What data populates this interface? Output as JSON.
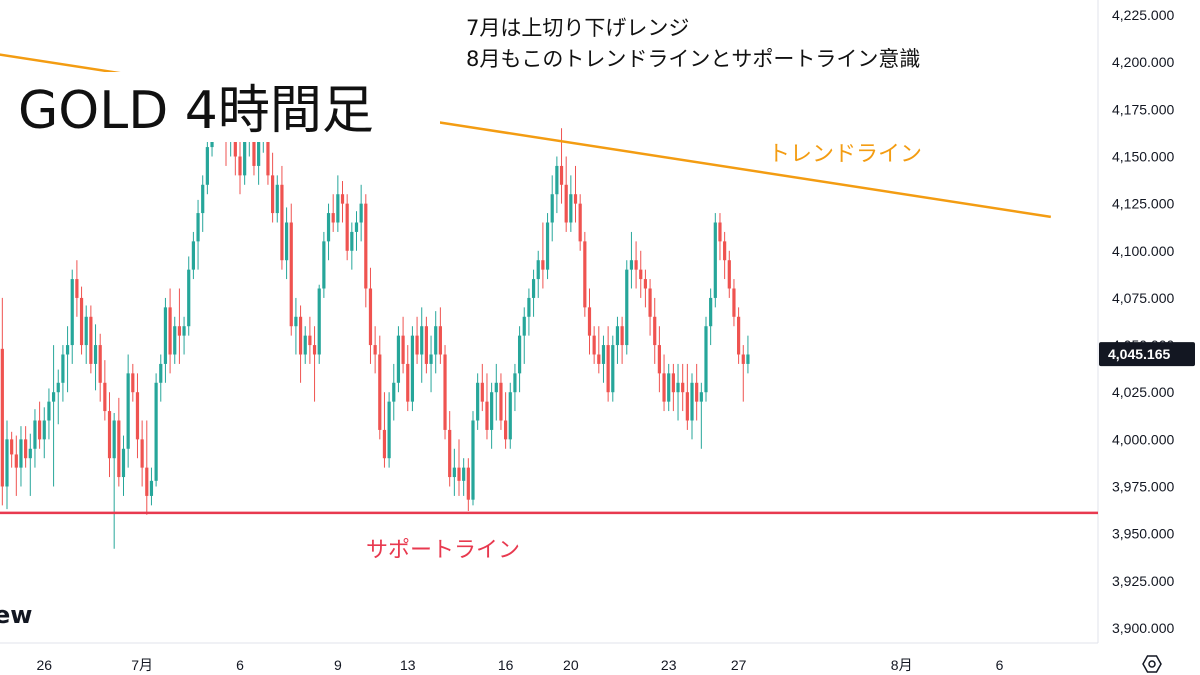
{
  "chart_data": {
    "type": "candlestick",
    "title": "GOLD 4時間足",
    "notes": [
      "7月は上切り下げレンジ",
      "8月もこのトレンドラインとサポートライン意識"
    ],
    "y_ticks": [
      "4,225.000",
      "4,200.000",
      "4,175.000",
      "4,150.000",
      "4,125.000",
      "4,100.000",
      "4,075.000",
      "4,050.000",
      "4,025.000",
      "4,000.000",
      "3,975.000",
      "3,950.000",
      "3,925.000",
      "3,900.000"
    ],
    "y_tick_values": [
      4225,
      4200,
      4175,
      4150,
      4125,
      4100,
      4075,
      4050,
      4025,
      4000,
      3975,
      3950,
      3925,
      3900
    ],
    "ylim": [
      3892,
      4233
    ],
    "x_ticks": [
      {
        "label": "26",
        "index": 9
      },
      {
        "label": "7月",
        "index": 30
      },
      {
        "label": "6",
        "index": 51
      },
      {
        "label": "9",
        "index": 72
      },
      {
        "label": "13",
        "index": 87
      },
      {
        "label": "16",
        "index": 108
      },
      {
        "label": "20",
        "index": 122
      },
      {
        "label": "23",
        "index": 143
      },
      {
        "label": "27",
        "index": 158
      },
      {
        "label": "8月",
        "index": 193
      },
      {
        "label": "6",
        "index": 214
      }
    ],
    "last_price": 4045.165,
    "last_price_label": "4,045.165",
    "trendline": {
      "label": "トレンドライン",
      "start": {
        "index": -3,
        "value": 4205
      },
      "end": {
        "index": 225,
        "value": 4118
      },
      "color": "#f39c12"
    },
    "support_line": {
      "label": "サポートライン",
      "value": 3961,
      "color": "#e8394f"
    },
    "up_color": "#26a69a",
    "down_color": "#ef5350",
    "candles": [
      [
        4048,
        4075,
        3965,
        3975
      ],
      [
        3975,
        4010,
        3963,
        4000
      ],
      [
        4000,
        4004,
        3985,
        3992
      ],
      [
        3992,
        4002,
        3970,
        3985
      ],
      [
        3985,
        4007,
        3975,
        4000
      ],
      [
        4000,
        4007,
        3985,
        3990
      ],
      [
        3990,
        4003,
        3970,
        3995
      ],
      [
        3995,
        4016,
        3985,
        4010
      ],
      [
        4010,
        4020,
        3995,
        4000
      ],
      [
        4000,
        4017,
        3990,
        4010
      ],
      [
        4010,
        4027,
        4000,
        4020
      ],
      [
        4020,
        4050,
        3975,
        4025
      ],
      [
        4025,
        4037,
        4008,
        4030
      ],
      [
        4030,
        4050,
        4020,
        4045
      ],
      [
        4045,
        4060,
        4025,
        4050
      ],
      [
        4050,
        4090,
        4040,
        4085
      ],
      [
        4085,
        4095,
        4065,
        4075
      ],
      [
        4075,
        4081,
        4045,
        4050
      ],
      [
        4050,
        4071,
        4040,
        4065
      ],
      [
        4065,
        4071,
        4035,
        4040
      ],
      [
        4040,
        4061,
        4026,
        4050
      ],
      [
        4050,
        4056,
        4020,
        4030
      ],
      [
        4030,
        4042,
        4010,
        4015
      ],
      [
        4015,
        4025,
        3980,
        3990
      ],
      [
        3990,
        4014,
        3942,
        4010
      ],
      [
        4010,
        4022,
        3975,
        3980
      ],
      [
        3980,
        4002,
        3970,
        3995
      ],
      [
        3995,
        4045,
        3985,
        4035
      ],
      [
        4035,
        4040,
        4020,
        4025
      ],
      [
        4025,
        4035,
        3990,
        4000
      ],
      [
        4000,
        4010,
        3975,
        3985
      ],
      [
        3985,
        4010,
        3960,
        3970
      ],
      [
        3970,
        3985,
        3965,
        3978
      ],
      [
        3978,
        4035,
        3975,
        4030
      ],
      [
        4030,
        4045,
        4020,
        4040
      ],
      [
        4040,
        4075,
        4030,
        4070
      ],
      [
        4070,
        4080,
        4035,
        4045
      ],
      [
        4045,
        4065,
        4040,
        4060
      ],
      [
        4060,
        4080,
        4040,
        4055
      ],
      [
        4055,
        4065,
        4045,
        4060
      ],
      [
        4060,
        4097,
        4055,
        4090
      ],
      [
        4090,
        4110,
        4085,
        4105
      ],
      [
        4105,
        4127,
        4090,
        4120
      ],
      [
        4120,
        4140,
        4110,
        4135
      ],
      [
        4135,
        4158,
        4130,
        4155
      ],
      [
        4155,
        4174,
        4150,
        4170
      ],
      [
        4170,
        4185,
        4160,
        4175
      ],
      [
        4175,
        4190,
        4160,
        4170
      ],
      [
        4170,
        4180,
        4145,
        4160
      ],
      [
        4160,
        4175,
        4150,
        4165
      ],
      [
        4165,
        4170,
        4140,
        4150
      ],
      [
        4150,
        4160,
        4130,
        4140
      ],
      [
        4140,
        4163,
        4135,
        4160
      ],
      [
        4160,
        4178,
        4150,
        4170
      ],
      [
        4170,
        4175,
        4140,
        4145
      ],
      [
        4145,
        4165,
        4135,
        4160
      ],
      [
        4160,
        4172,
        4152,
        4165
      ],
      [
        4165,
        4170,
        4135,
        4140
      ],
      [
        4140,
        4152,
        4115,
        4120
      ],
      [
        4120,
        4140,
        4115,
        4135
      ],
      [
        4135,
        4145,
        4090,
        4095
      ],
      [
        4095,
        4123,
        4085,
        4115
      ],
      [
        4115,
        4125,
        4055,
        4060
      ],
      [
        4060,
        4075,
        4045,
        4065
      ],
      [
        4065,
        4071,
        4030,
        4045
      ],
      [
        4045,
        4060,
        4040,
        4055
      ],
      [
        4055,
        4065,
        4040,
        4050
      ],
      [
        4050,
        4060,
        4020,
        4045
      ],
      [
        4045,
        4082,
        4040,
        4080
      ],
      [
        4080,
        4110,
        4075,
        4105
      ],
      [
        4105,
        4125,
        4095,
        4120
      ],
      [
        4120,
        4130,
        4110,
        4115
      ],
      [
        4115,
        4140,
        4110,
        4130
      ],
      [
        4130,
        4137,
        4115,
        4125
      ],
      [
        4125,
        4130,
        4095,
        4100
      ],
      [
        4100,
        4115,
        4090,
        4110
      ],
      [
        4110,
        4121,
        4100,
        4115
      ],
      [
        4115,
        4135,
        4105,
        4125
      ],
      [
        4125,
        4130,
        4070,
        4080
      ],
      [
        4080,
        4091,
        4040,
        4050
      ],
      [
        4050,
        4060,
        4035,
        4045
      ],
      [
        4045,
        4055,
        4000,
        4005
      ],
      [
        4005,
        4025,
        3985,
        3990
      ],
      [
        3990,
        4025,
        3985,
        4020
      ],
      [
        4020,
        4040,
        4010,
        4030
      ],
      [
        4030,
        4060,
        4025,
        4055
      ],
      [
        4055,
        4065,
        4035,
        4040
      ],
      [
        4040,
        4050,
        4015,
        4020
      ],
      [
        4020,
        4060,
        4015,
        4055
      ],
      [
        4055,
        4065,
        4040,
        4045
      ],
      [
        4045,
        4070,
        4030,
        4060
      ],
      [
        4060,
        4065,
        4035,
        4040
      ],
      [
        4040,
        4055,
        4025,
        4045
      ],
      [
        4045,
        4068,
        4035,
        4060
      ],
      [
        4060,
        4070,
        4040,
        4045
      ],
      [
        4045,
        4050,
        4000,
        4005
      ],
      [
        4005,
        4015,
        3975,
        3980
      ],
      [
        3980,
        3995,
        3970,
        3985
      ],
      [
        3985,
        4000,
        3970,
        3978
      ],
      [
        3978,
        3990,
        3970,
        3985
      ],
      [
        3985,
        3990,
        3962,
        3968
      ],
      [
        3968,
        4015,
        3965,
        4010
      ],
      [
        4010,
        4035,
        4005,
        4030
      ],
      [
        4030,
        4040,
        4015,
        4020
      ],
      [
        4020,
        4035,
        4000,
        4005
      ],
      [
        4005,
        4030,
        3995,
        4025
      ],
      [
        4025,
        4040,
        4010,
        4030
      ],
      [
        4030,
        4035,
        4005,
        4010
      ],
      [
        4010,
        4025,
        3995,
        4000
      ],
      [
        4000,
        4030,
        3995,
        4025
      ],
      [
        4025,
        4040,
        4015,
        4035
      ],
      [
        4035,
        4060,
        4025,
        4055
      ],
      [
        4055,
        4070,
        4040,
        4065
      ],
      [
        4065,
        4080,
        4055,
        4075
      ],
      [
        4075,
        4090,
        4065,
        4085
      ],
      [
        4085,
        4100,
        4075,
        4095
      ],
      [
        4095,
        4115,
        4080,
        4090
      ],
      [
        4090,
        4120,
        4085,
        4115
      ],
      [
        4115,
        4140,
        4105,
        4130
      ],
      [
        4130,
        4150,
        4120,
        4145
      ],
      [
        4145,
        4165,
        4125,
        4135
      ],
      [
        4135,
        4150,
        4110,
        4115
      ],
      [
        4115,
        4140,
        4110,
        4130
      ],
      [
        4130,
        4145,
        4115,
        4125
      ],
      [
        4125,
        4130,
        4100,
        4105
      ],
      [
        4105,
        4110,
        4065,
        4070
      ],
      [
        4070,
        4080,
        4045,
        4055
      ],
      [
        4055,
        4060,
        4040,
        4045
      ],
      [
        4045,
        4060,
        4035,
        4040
      ],
      [
        4040,
        4055,
        4030,
        4050
      ],
      [
        4050,
        4060,
        4020,
        4025
      ],
      [
        4025,
        4055,
        4020,
        4050
      ],
      [
        4050,
        4065,
        4040,
        4060
      ],
      [
        4060,
        4065,
        4040,
        4050
      ],
      [
        4050,
        4095,
        4045,
        4090
      ],
      [
        4090,
        4110,
        4080,
        4095
      ],
      [
        4095,
        4105,
        4080,
        4090
      ],
      [
        4090,
        4100,
        4075,
        4085
      ],
      [
        4085,
        4090,
        4070,
        4080
      ],
      [
        4080,
        4085,
        4055,
        4065
      ],
      [
        4065,
        4075,
        4040,
        4050
      ],
      [
        4050,
        4060,
        4025,
        4035
      ],
      [
        4035,
        4045,
        4015,
        4020
      ],
      [
        4020,
        4040,
        4015,
        4035
      ],
      [
        4035,
        4040,
        4015,
        4025
      ],
      [
        4025,
        4040,
        4010,
        4030
      ],
      [
        4030,
        4040,
        4015,
        4025
      ],
      [
        4025,
        4040,
        4005,
        4010
      ],
      [
        4010,
        4035,
        4000,
        4030
      ],
      [
        4030,
        4040,
        4010,
        4020
      ],
      [
        4020,
        4030,
        3995,
        4025
      ],
      [
        4025,
        4065,
        4020,
        4060
      ],
      [
        4060,
        4080,
        4050,
        4075
      ],
      [
        4075,
        4120,
        4070,
        4115
      ],
      [
        4115,
        4120,
        4095,
        4105
      ],
      [
        4105,
        4110,
        4085,
        4095
      ],
      [
        4095,
        4100,
        4075,
        4080
      ],
      [
        4080,
        4085,
        4060,
        4065
      ],
      [
        4065,
        4070,
        4040,
        4045
      ],
      [
        4045,
        4050,
        4020,
        4040
      ],
      [
        4040,
        4055,
        4035,
        4045
      ]
    ]
  }
}
